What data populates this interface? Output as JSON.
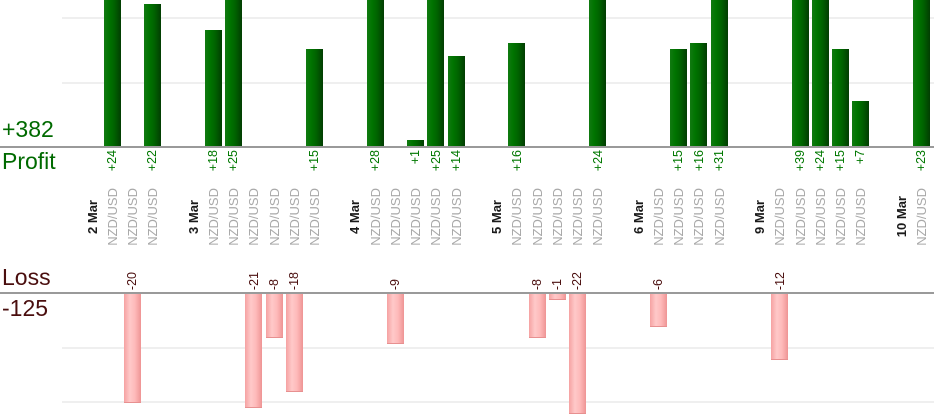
{
  "summary": {
    "profit_total_label": "+382",
    "profit_caption": "Profit",
    "loss_caption": "Loss",
    "loss_total_label": "-125"
  },
  "colors": {
    "profit_bar": "#006f00",
    "loss_bar": "#ffbcbc",
    "profit_text": "#006a00",
    "loss_text": "#4a0e0e",
    "date_text": "#1b1b1b",
    "symbol_text": "#a9a9a9",
    "axis_line": "#9a9a9a",
    "gridline": "#efefef"
  },
  "chart_data": {
    "type": "bar",
    "title": "",
    "legend": "none",
    "grid": "horizontal, every 10 units",
    "gridline_interval": 10,
    "totals": {
      "profit": 382,
      "loss": -125
    },
    "groups": [
      {
        "date": "2 Mar",
        "trades": [
          {
            "symbol": "NZD/USD",
            "value": 24
          },
          {
            "symbol": "NZD/USD",
            "value": -20
          },
          {
            "symbol": "NZD/USD",
            "value": 22
          }
        ]
      },
      {
        "date": "3 Mar",
        "trades": [
          {
            "symbol": "NZD/USD",
            "value": 18
          },
          {
            "symbol": "NZD/USD",
            "value": 25
          },
          {
            "symbol": "NZD/USD",
            "value": -21
          },
          {
            "symbol": "NZD/USD",
            "value": -8
          },
          {
            "symbol": "NZD/USD",
            "value": -18
          },
          {
            "symbol": "NZD/USD",
            "value": 15
          }
        ]
      },
      {
        "date": "4 Mar",
        "trades": [
          {
            "symbol": "NZD/USD",
            "value": 28
          },
          {
            "symbol": "NZD/USD",
            "value": -9
          },
          {
            "symbol": "NZD/USD",
            "value": 1
          },
          {
            "symbol": "NZD/USD",
            "value": 25
          },
          {
            "symbol": "NZD/USD",
            "value": 14
          }
        ]
      },
      {
        "date": "5 Mar",
        "trades": [
          {
            "symbol": "NZD/USD",
            "value": 16
          },
          {
            "symbol": "NZD/USD",
            "value": -8
          },
          {
            "symbol": "NZD/USD",
            "value": -1
          },
          {
            "symbol": "NZD/USD",
            "value": -22
          },
          {
            "symbol": "NZD/USD",
            "value": 24
          }
        ]
      },
      {
        "date": "6 Mar",
        "trades": [
          {
            "symbol": "NZD/USD",
            "value": -6
          },
          {
            "symbol": "NZD/USD",
            "value": 15
          },
          {
            "symbol": "NZD/USD",
            "value": 16
          },
          {
            "symbol": "NZD/USD",
            "value": 31
          }
        ]
      },
      {
        "date": "9 Mar",
        "trades": [
          {
            "symbol": "NZD/USD",
            "value": -12
          },
          {
            "symbol": "NZD/USD",
            "value": 39
          },
          {
            "symbol": "NZD/USD",
            "value": 24
          },
          {
            "symbol": "NZD/USD",
            "value": 15
          },
          {
            "symbol": "NZD/USD",
            "value": 7
          }
        ]
      },
      {
        "date": "10 Mar",
        "trades": [
          {
            "symbol": "NZD/USD",
            "value": 23
          }
        ]
      }
    ]
  }
}
